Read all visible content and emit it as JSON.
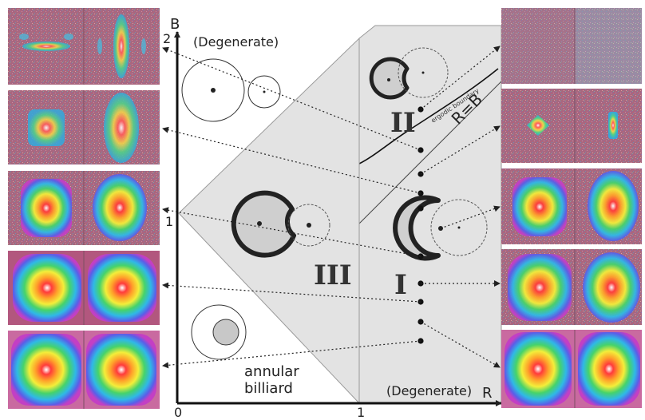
{
  "axes": {
    "y_label": "B",
    "x_label": "R",
    "y_tick_2": "2",
    "y_tick_1": "1",
    "x_tick_0": "0",
    "x_tick_1": "1"
  },
  "labels": {
    "degenerate_top": "(Degenerate)",
    "degenerate_bottom": "(Degenerate)",
    "annular_line1": "annular",
    "annular_line2": "billiard",
    "region_I": "I",
    "region_II": "II",
    "region_III": "III",
    "r_equals_b": "R=B",
    "ergodic_boundary": "ergodic boundary"
  },
  "colors": {
    "region_fill": "#e3e3e3",
    "shape_fill": "#cfcfcf",
    "ink": "#222222",
    "thumb_frame": "#b25a78"
  }
}
